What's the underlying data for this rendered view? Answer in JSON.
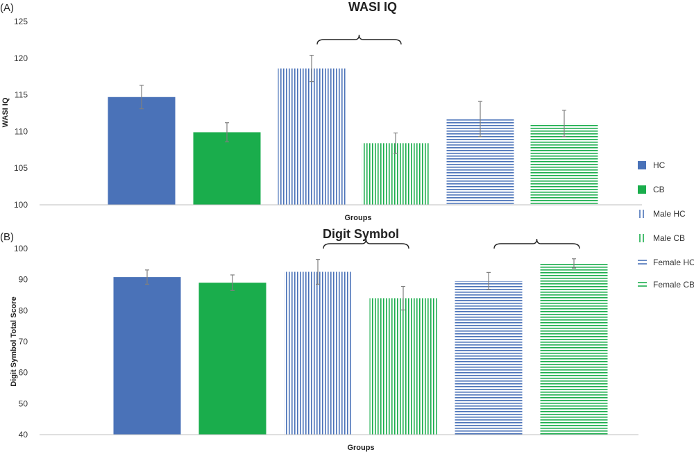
{
  "colors": {
    "hc": "#4a72b8",
    "cb": "#1aad4c",
    "error_bar": "#7f7f7f",
    "axis": "#bfbfbf",
    "bracket": "#222222"
  },
  "legend": [
    {
      "label": "HC",
      "color": "#4a72b8",
      "pattern": "solid"
    },
    {
      "label": "CB",
      "color": "#1aad4c",
      "pattern": "solid"
    },
    {
      "label": "Male HC",
      "color": "#4a72b8",
      "pattern": "vertical"
    },
    {
      "label": "Male CB",
      "color": "#1aad4c",
      "pattern": "vertical"
    },
    {
      "label": "Female HC",
      "color": "#4a72b8",
      "pattern": "horizontal"
    },
    {
      "label": "Female CB",
      "color": "#1aad4c",
      "pattern": "horizontal"
    }
  ],
  "chart_data": [
    {
      "type": "bar",
      "panel_label": "(A)",
      "title": "WASI IQ",
      "xlabel": "Groups",
      "ylabel": "WASI IQ",
      "ylim": [
        100,
        125
      ],
      "yticks": [
        100,
        105,
        110,
        115,
        120,
        125
      ],
      "grid": false,
      "categories": [
        "HC",
        "CB",
        "Male HC",
        "Male CB",
        "Female HC",
        "Female CB"
      ],
      "values": [
        114.7,
        109.9,
        118.6,
        108.4,
        111.7,
        111.1
      ],
      "errors": [
        1.6,
        1.3,
        1.8,
        1.4,
        2.4,
        1.8
      ],
      "significance_brackets": [
        [
          2,
          3
        ]
      ]
    },
    {
      "type": "bar",
      "panel_label": "(B)",
      "title": "Digit Symbol",
      "xlabel": "Groups",
      "ylabel": "Digit Symbol Total Score",
      "ylim": [
        40,
        100
      ],
      "yticks": [
        40,
        50,
        60,
        70,
        80,
        90,
        100
      ],
      "grid": false,
      "categories": [
        "HC",
        "CB",
        "Male HC",
        "Male CB",
        "Female HC",
        "Female CB"
      ],
      "values": [
        90.8,
        89.0,
        92.5,
        84.0,
        89.5,
        95.2
      ],
      "errors": [
        2.3,
        2.5,
        4.0,
        3.8,
        2.8,
        1.5
      ],
      "significance_brackets": [
        [
          2,
          3
        ],
        [
          4,
          5
        ]
      ]
    }
  ]
}
